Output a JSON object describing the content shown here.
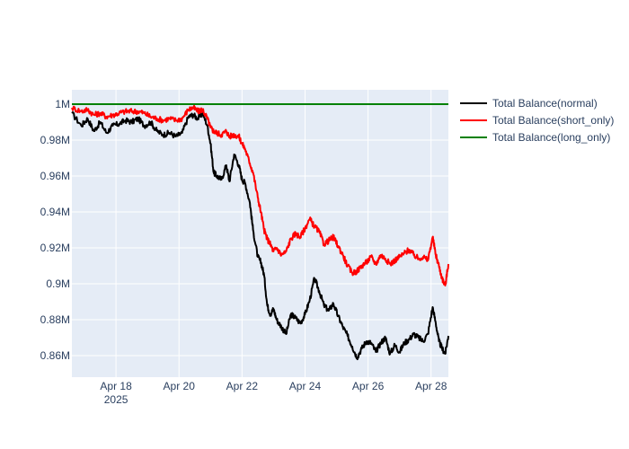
{
  "chart_data": {
    "type": "line",
    "title": "",
    "xlabel": "",
    "ylabel": "",
    "x_range": [
      16.6,
      28.55
    ],
    "ylim": [
      848000,
      1008000
    ],
    "x_ticks": [
      {
        "value": 18,
        "label": "Apr 18",
        "sublabel": "2025"
      },
      {
        "value": 20,
        "label": "Apr 20",
        "sublabel": ""
      },
      {
        "value": 22,
        "label": "Apr 22",
        "sublabel": ""
      },
      {
        "value": 24,
        "label": "Apr 24",
        "sublabel": ""
      },
      {
        "value": 26,
        "label": "Apr 26",
        "sublabel": ""
      },
      {
        "value": 28,
        "label": "Apr 28",
        "sublabel": ""
      }
    ],
    "y_ticks": [
      {
        "value": 860000,
        "label": "0.86M"
      },
      {
        "value": 880000,
        "label": "0.88M"
      },
      {
        "value": 900000,
        "label": "0.9M"
      },
      {
        "value": 920000,
        "label": "0.92M"
      },
      {
        "value": 940000,
        "label": "0.94M"
      },
      {
        "value": 960000,
        "label": "0.96M"
      },
      {
        "value": 980000,
        "label": "0.98M"
      },
      {
        "value": 1000000,
        "label": "1M"
      }
    ],
    "legend_position": "top-right",
    "series": [
      {
        "name": "Total Balance(normal)",
        "color": "#000000",
        "x": [
          16.6,
          16.9,
          17.1,
          17.3,
          17.5,
          17.7,
          17.9,
          18.1,
          18.3,
          18.5,
          18.7,
          18.9,
          19.1,
          19.3,
          19.5,
          19.7,
          19.9,
          20.1,
          20.3,
          20.45,
          20.6,
          20.75,
          20.9,
          21.0,
          21.1,
          21.2,
          21.35,
          21.5,
          21.6,
          21.75,
          21.9,
          22.0,
          22.1,
          22.25,
          22.35,
          22.5,
          22.6,
          22.7,
          22.8,
          22.9,
          23.0,
          23.1,
          23.25,
          23.4,
          23.55,
          23.7,
          23.85,
          24.0,
          24.15,
          24.3,
          24.45,
          24.6,
          24.75,
          24.9,
          25.05,
          25.2,
          25.35,
          25.5,
          25.65,
          25.8,
          25.95,
          26.1,
          26.25,
          26.4,
          26.55,
          26.7,
          26.85,
          27.0,
          27.15,
          27.3,
          27.45,
          27.6,
          27.75,
          27.9,
          28.05,
          28.15,
          28.25,
          28.35,
          28.45,
          28.55
        ],
        "values": [
          995000,
          988000,
          992000,
          985000,
          990000,
          984000,
          988000,
          989000,
          991000,
          990000,
          992000,
          988000,
          990000,
          985000,
          983000,
          984000,
          982000,
          984000,
          993000,
          994000,
          992000,
          995000,
          988000,
          978000,
          962000,
          960000,
          958000,
          966000,
          957000,
          972000,
          966000,
          958000,
          956000,
          945000,
          930000,
          915000,
          912000,
          905000,
          888000,
          883000,
          886000,
          880000,
          876000,
          872000,
          883000,
          881000,
          878000,
          883000,
          891000,
          903000,
          896000,
          888000,
          885000,
          889000,
          882000,
          876000,
          871000,
          865000,
          859000,
          864000,
          868000,
          867000,
          862000,
          867000,
          870000,
          861000,
          866000,
          862000,
          867000,
          869000,
          872000,
          870000,
          868000,
          872000,
          887000,
          878000,
          868000,
          864000,
          861000,
          871000
        ]
      },
      {
        "name": "Total Balance(short_only)",
        "color": "#ff0000",
        "x": [
          16.6,
          16.9,
          17.1,
          17.3,
          17.5,
          17.7,
          17.9,
          18.1,
          18.3,
          18.5,
          18.7,
          18.9,
          19.1,
          19.3,
          19.5,
          19.7,
          19.9,
          20.1,
          20.3,
          20.45,
          20.6,
          20.75,
          20.9,
          21.0,
          21.1,
          21.2,
          21.35,
          21.5,
          21.6,
          21.75,
          21.9,
          22.0,
          22.1,
          22.25,
          22.35,
          22.5,
          22.6,
          22.7,
          22.8,
          22.9,
          23.0,
          23.1,
          23.25,
          23.4,
          23.55,
          23.7,
          23.85,
          24.0,
          24.15,
          24.3,
          24.45,
          24.6,
          24.75,
          24.9,
          25.05,
          25.2,
          25.35,
          25.5,
          25.65,
          25.8,
          25.95,
          26.1,
          26.25,
          26.4,
          26.55,
          26.7,
          26.85,
          27.0,
          27.15,
          27.3,
          27.45,
          27.6,
          27.75,
          27.9,
          28.05,
          28.15,
          28.25,
          28.35,
          28.45,
          28.55
        ],
        "values": [
          998000,
          996000,
          997000,
          994000,
          995000,
          993000,
          994000,
          995000,
          996000,
          996000,
          996000,
          995000,
          993000,
          992000,
          991000,
          992000,
          991000,
          992000,
          997000,
          998000,
          996000,
          997000,
          992000,
          987000,
          985000,
          984000,
          983000,
          985000,
          982000,
          983000,
          982000,
          978000,
          975000,
          967000,
          962000,
          948000,
          940000,
          930000,
          925000,
          922000,
          918000,
          920000,
          916000,
          918000,
          925000,
          928000,
          926000,
          931000,
          936000,
          932000,
          929000,
          922000,
          924000,
          926000,
          921000,
          916000,
          910000,
          906000,
          907000,
          910000,
          912000,
          915000,
          911000,
          916000,
          914000,
          911000,
          913000,
          915000,
          917000,
          919000,
          916000,
          914000,
          915000,
          913000,
          926000,
          916000,
          910000,
          903000,
          899000,
          911000
        ]
      },
      {
        "name": "Total Balance(long_only)",
        "color": "#008000",
        "x": [
          16.6,
          28.55
        ],
        "values": [
          1000000,
          1000000
        ]
      }
    ]
  }
}
